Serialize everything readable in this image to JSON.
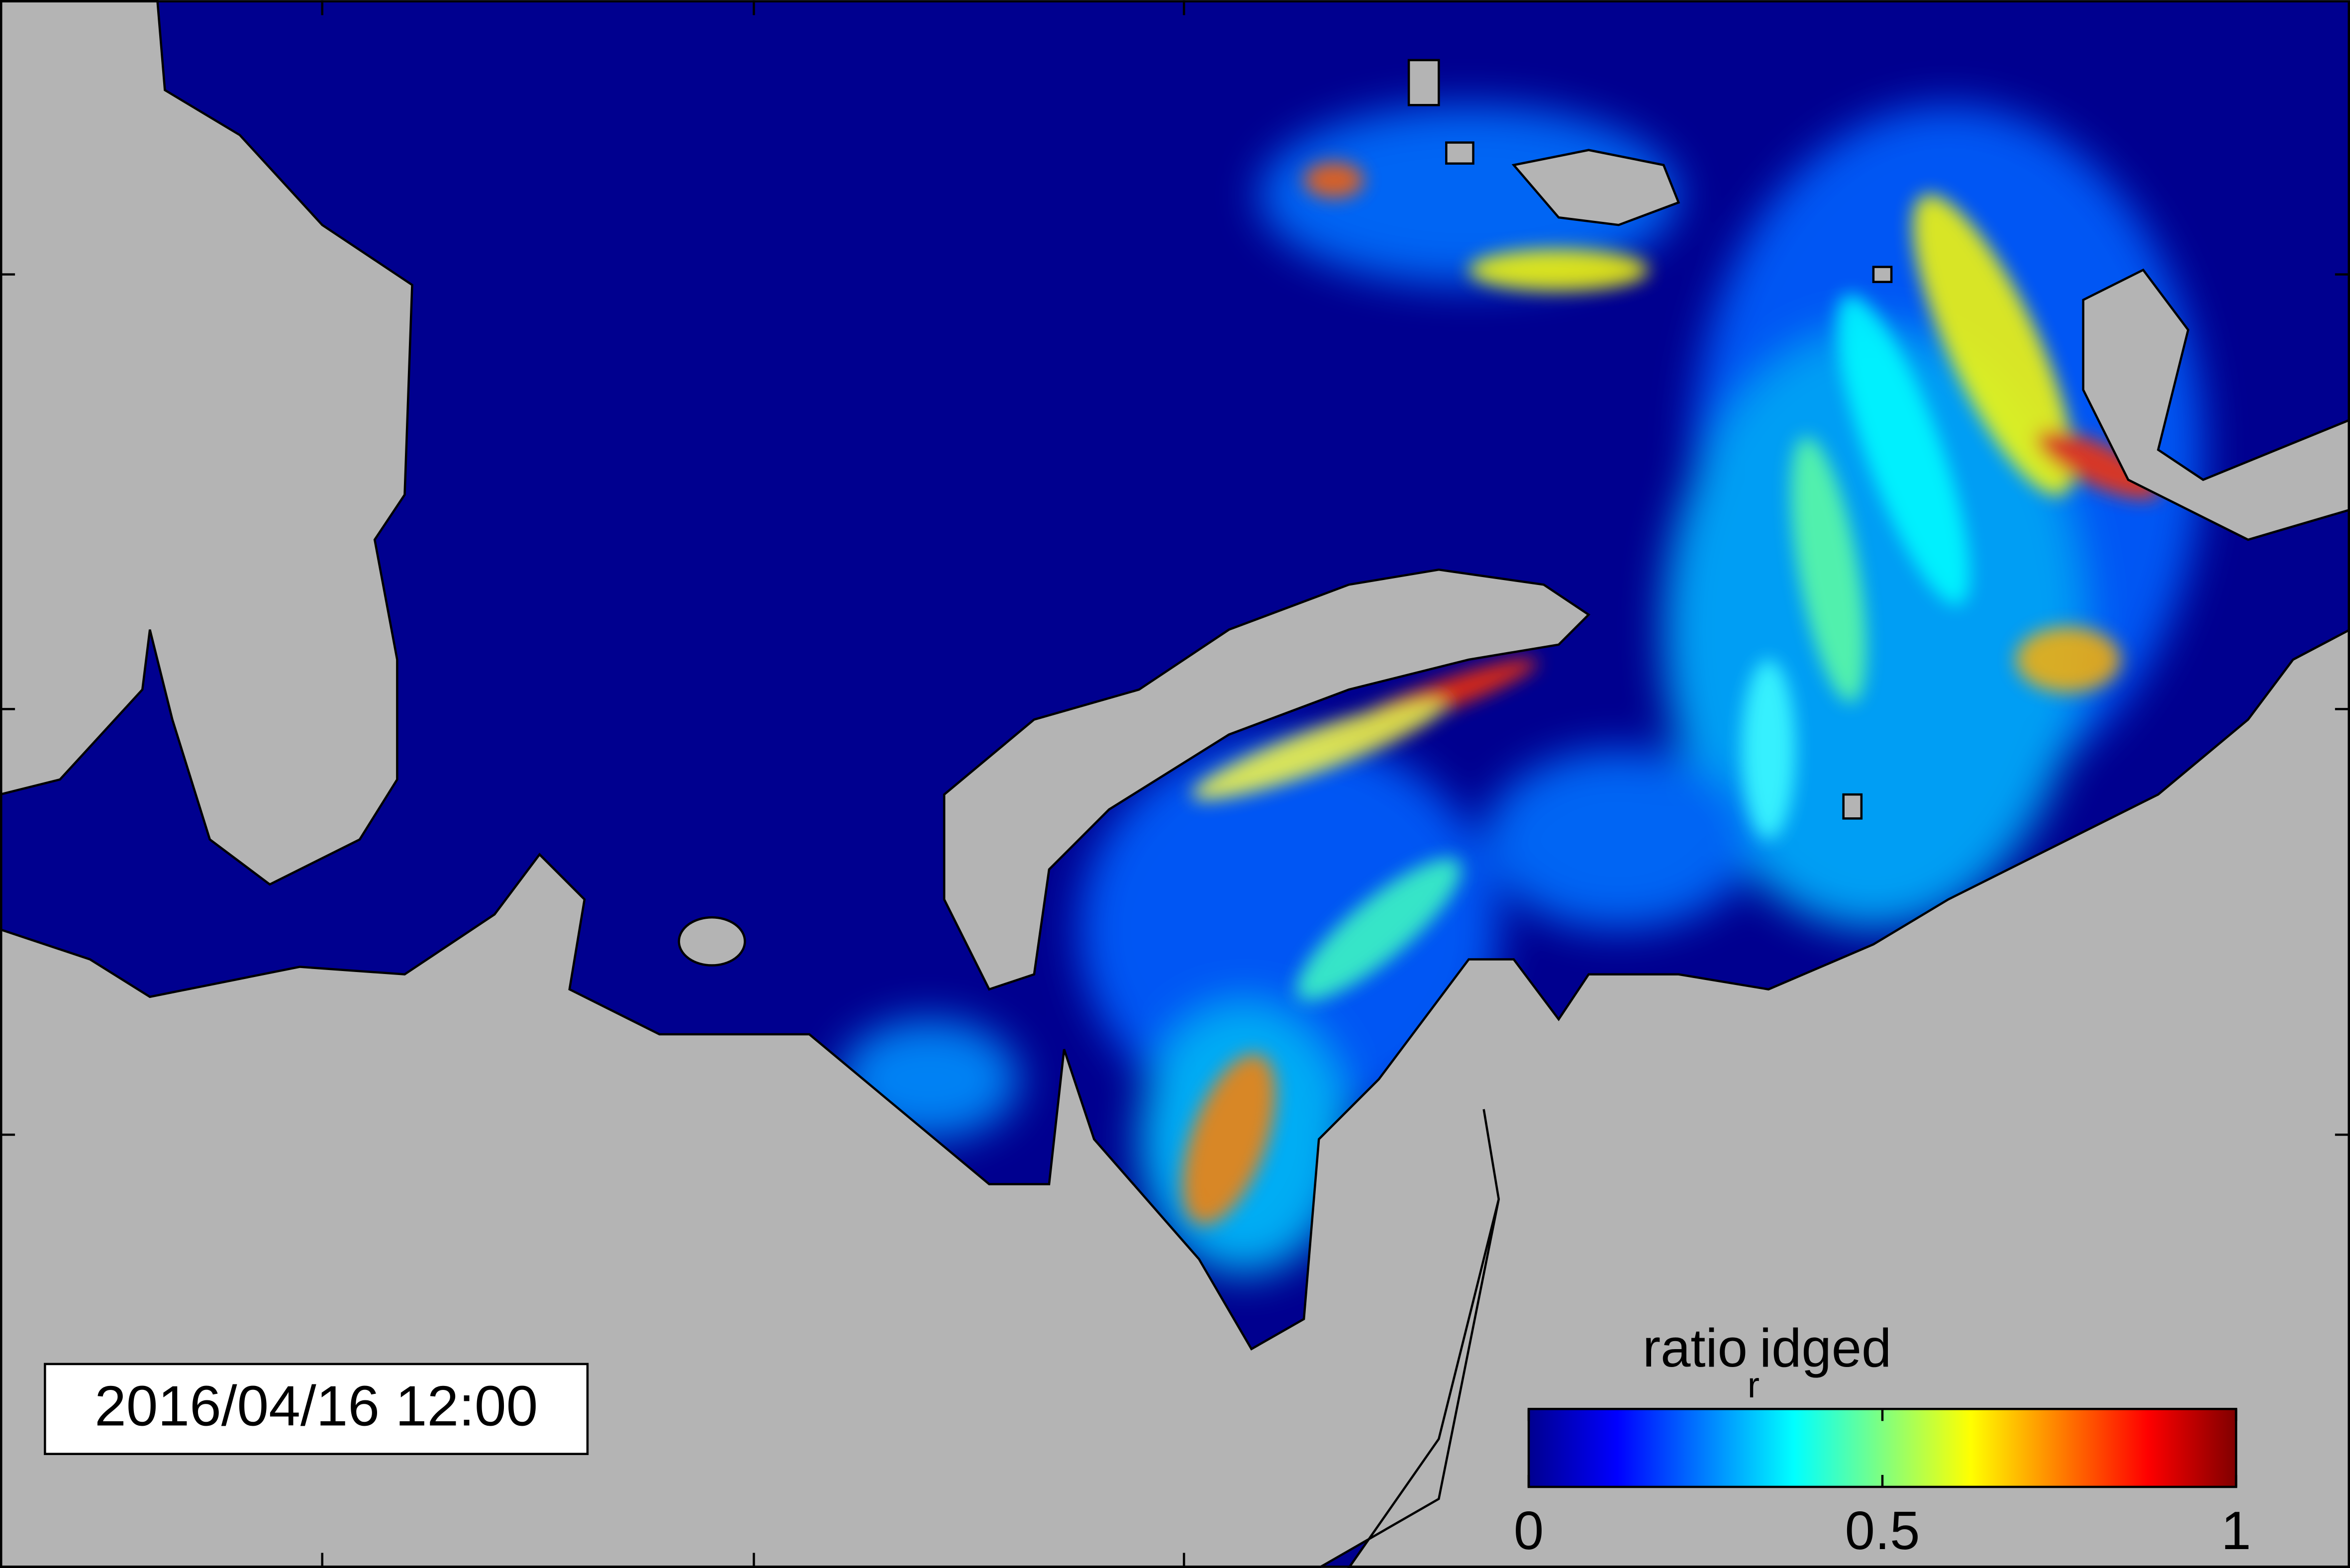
{
  "timestamp": "2016/04/16 12:00",
  "colorbar": {
    "title": "ratio",
    "subscript": "r",
    "title_rest": "idged",
    "lim": [
      0,
      1
    ],
    "ticks": [
      0,
      0.5,
      1
    ]
  }
}
